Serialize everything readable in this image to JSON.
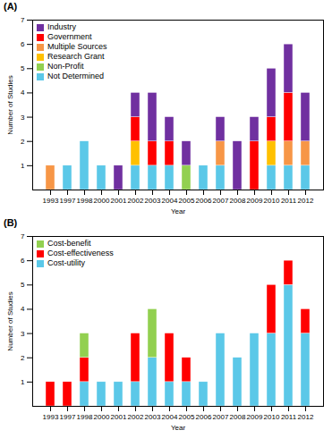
{
  "chart_data": [
    {
      "type": "bar",
      "title": "(A)",
      "xlabel": "Year",
      "ylabel": "Number of Studies",
      "categories": [
        "1993",
        "1997",
        "1998",
        "2000",
        "2001",
        "2002",
        "2003",
        "2004",
        "2005",
        "2006",
        "2007",
        "2008",
        "2009",
        "2010",
        "2011",
        "2012"
      ],
      "series": [
        {
          "name": "Not Determined",
          "color": "#5bc8e8",
          "values": [
            0,
            1,
            2,
            1,
            0,
            1,
            1,
            1,
            0,
            1,
            1,
            0,
            0,
            1,
            1,
            1
          ]
        },
        {
          "name": "Non-Profit",
          "color": "#92d050",
          "values": [
            0,
            0,
            0,
            0,
            0,
            0,
            0,
            0,
            1,
            0,
            0,
            0,
            0,
            0,
            0,
            0
          ]
        },
        {
          "name": "Research Grant",
          "color": "#ffc000",
          "values": [
            0,
            0,
            0,
            0,
            0,
            1,
            0,
            0,
            0,
            0,
            0,
            0,
            0,
            1,
            0,
            0
          ]
        },
        {
          "name": "Multiple Sources",
          "color": "#f79646",
          "values": [
            1,
            0,
            0,
            0,
            0,
            0,
            0,
            0,
            0,
            0,
            1,
            0,
            0,
            0,
            1,
            1
          ]
        },
        {
          "name": "Government",
          "color": "#ff0000",
          "values": [
            0,
            0,
            0,
            0,
            0,
            1,
            1,
            1,
            0,
            0,
            0,
            0,
            2,
            1,
            2,
            0
          ]
        },
        {
          "name": "Industry",
          "color": "#7030a0",
          "values": [
            0,
            0,
            0,
            0,
            1,
            1,
            2,
            1,
            1,
            0,
            1,
            2,
            1,
            2,
            2,
            2
          ]
        }
      ],
      "ylim": [
        0,
        7
      ],
      "yticks": [
        1,
        2,
        3,
        4,
        5,
        6,
        7
      ],
      "stacked": true,
      "legend": "upper left"
    },
    {
      "type": "bar",
      "title": "(B)",
      "xlabel": "Year",
      "ylabel": "Number of Studies",
      "categories": [
        "1993",
        "1997",
        "1998",
        "2000",
        "2001",
        "2002",
        "2003",
        "2004",
        "2005",
        "2006",
        "2007",
        "2008",
        "2009",
        "2010",
        "2011",
        "2012"
      ],
      "series": [
        {
          "name": "Cost-utility",
          "color": "#5bc8e8",
          "values": [
            0,
            0,
            1,
            1,
            1,
            1,
            2,
            1,
            1,
            1,
            3,
            2,
            3,
            3,
            5,
            3
          ]
        },
        {
          "name": "Cost-effectiveness",
          "color": "#ff0000",
          "values": [
            1,
            1,
            1,
            0,
            0,
            2,
            0,
            2,
            1,
            0,
            0,
            0,
            0,
            2,
            1,
            1
          ]
        },
        {
          "name": "Cost-benefit",
          "color": "#92d050",
          "values": [
            0,
            0,
            1,
            0,
            0,
            0,
            2,
            0,
            0,
            0,
            0,
            0,
            0,
            0,
            0,
            0
          ]
        }
      ],
      "ylim": [
        0,
        7
      ],
      "yticks": [
        1,
        2,
        3,
        4,
        5,
        6,
        7
      ],
      "stacked": true,
      "legend": "upper left"
    }
  ]
}
